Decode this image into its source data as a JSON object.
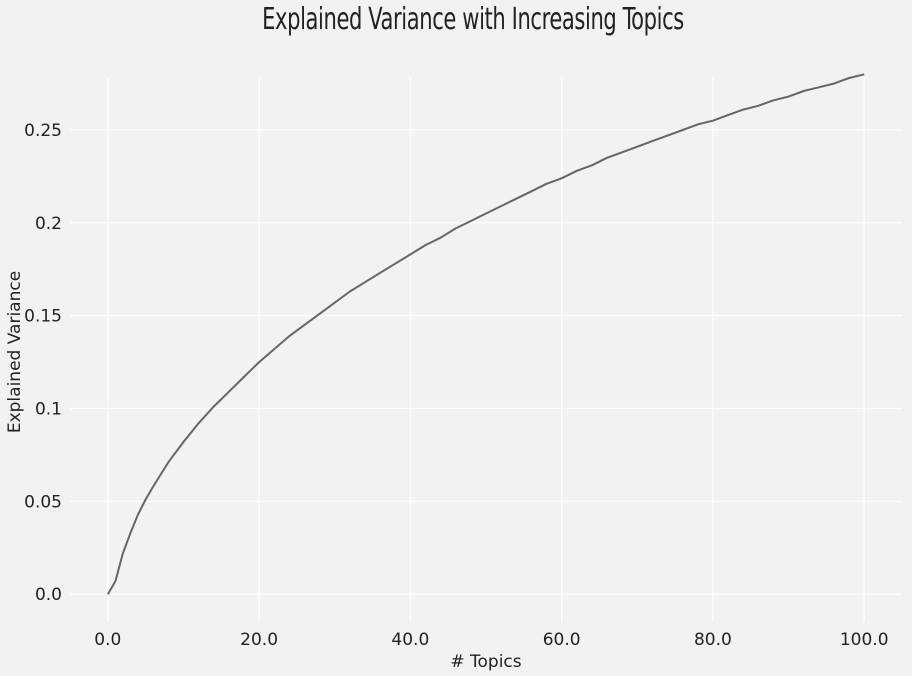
{
  "chart_data": {
    "type": "line",
    "title": "Explained Variance with Increasing Topics",
    "xlabel": "# Topics",
    "ylabel": "Explained Variance",
    "xlim": [
      -5,
      105
    ],
    "ylim": [
      -0.015,
      0.278
    ],
    "grid": true,
    "xticks": [
      0,
      20,
      40,
      60,
      80,
      100
    ],
    "xtick_labels": [
      "0.0",
      "20.0",
      "40.0",
      "60.0",
      "80.0",
      "100.0"
    ],
    "yticks": [
      0.0,
      0.05,
      0.1,
      0.15,
      0.2,
      0.25
    ],
    "ytick_labels": [
      "0.0",
      "0.05",
      "0.1",
      "0.15",
      "0.2",
      "0.25"
    ],
    "series": [
      {
        "color": "#666666",
        "x": [
          0,
          1,
          2,
          3,
          4,
          5,
          6,
          8,
          10,
          12,
          14,
          16,
          18,
          20,
          22,
          24,
          26,
          28,
          30,
          32,
          34,
          36,
          38,
          40,
          42,
          44,
          46,
          48,
          50,
          52,
          54,
          56,
          58,
          60,
          62,
          64,
          66,
          68,
          70,
          72,
          74,
          76,
          78,
          80,
          82,
          84,
          86,
          88,
          90,
          92,
          94,
          96,
          98,
          100
        ],
        "y": [
          0.0,
          0.007,
          0.022,
          0.033,
          0.043,
          0.051,
          0.058,
          0.071,
          0.082,
          0.092,
          0.101,
          0.109,
          0.117,
          0.125,
          0.132,
          0.139,
          0.145,
          0.151,
          0.157,
          0.163,
          0.168,
          0.173,
          0.178,
          0.183,
          0.188,
          0.192,
          0.197,
          0.201,
          0.205,
          0.209,
          0.213,
          0.217,
          0.221,
          0.224,
          0.228,
          0.231,
          0.235,
          0.238,
          0.241,
          0.244,
          0.247,
          0.25,
          0.253,
          0.255,
          0.258,
          0.261,
          0.263,
          0.266,
          0.268,
          0.271,
          0.273,
          0.275,
          0.278,
          0.28
        ]
      }
    ]
  },
  "colors": {
    "background": "#f2f2f2",
    "grid": "#ffffff",
    "line": "#666666",
    "text": "#222222"
  }
}
